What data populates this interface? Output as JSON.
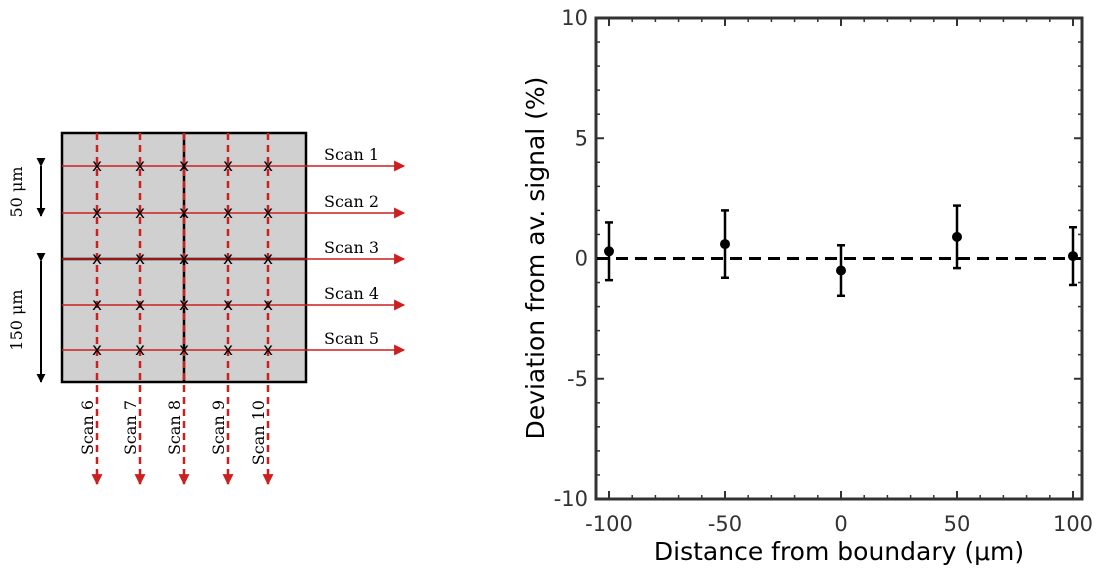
{
  "colors": {
    "sample_fill": "#d0d0d0",
    "scan_line": "#cc1f1f",
    "mark": "#000000",
    "axes": "#333333",
    "tick_label": "#333333",
    "reference_line": "#000000"
  },
  "schematic": {
    "scale_top": "50 μm",
    "scale_bottom": "150 μm",
    "marker_glyph": "x",
    "horizontal_scans": [
      "Scan 1",
      "Scan 2",
      "Scan 3",
      "Scan 4",
      "Scan 5"
    ],
    "vertical_scans": [
      "Scan 6",
      "Scan 7",
      "Scan 8",
      "Scan 9",
      "Scan 10"
    ]
  },
  "chart_data": {
    "type": "scatter",
    "xlabel": "Distance from boundary (μm)",
    "ylabel": "Deviation from av. signal (%)",
    "xlim": [
      -105,
      105
    ],
    "ylim": [
      -10,
      10
    ],
    "xticks": [
      -100,
      -50,
      0,
      50,
      100
    ],
    "yticks": [
      -10,
      -5,
      0,
      5,
      10
    ],
    "xtick_labels": [
      "-100",
      "-50",
      "0",
      "50",
      "100"
    ],
    "ytick_labels": [
      "-10",
      "-5",
      "0",
      "5",
      "10"
    ],
    "grid": false,
    "reference_line": {
      "y": 0,
      "style": "dashed"
    },
    "series": [
      {
        "x": [
          -100,
          -50,
          0,
          50,
          100
        ],
        "y": [
          0.3,
          0.6,
          -0.5,
          0.9,
          0.1
        ],
        "yerr": [
          1.2,
          1.4,
          1.05,
          1.3,
          1.2
        ]
      }
    ]
  }
}
